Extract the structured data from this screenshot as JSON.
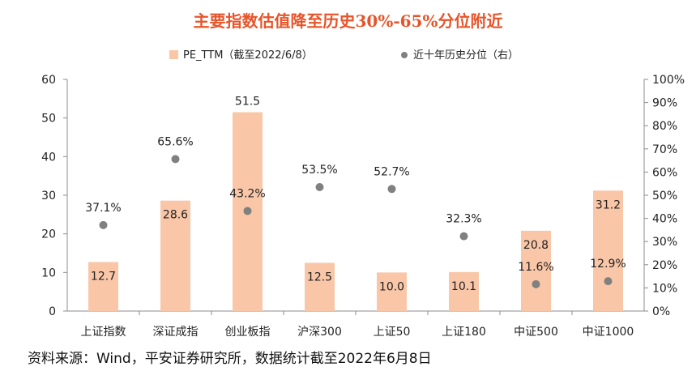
{
  "chart_data": {
    "type": "bar",
    "title": "主要指数估值降至历史30%-65%分位附近",
    "categories": [
      "上证指数",
      "深证成指",
      "创业板指",
      "沪深300",
      "上证50",
      "上证180",
      "中证500",
      "中证1000"
    ],
    "series": [
      {
        "name": "PE_TTM（截至2022/6/8）",
        "type": "bar",
        "axis": "left",
        "color": "#F9C7A8",
        "values": [
          12.7,
          28.6,
          51.5,
          12.5,
          10.0,
          10.1,
          20.8,
          31.2
        ],
        "labels": [
          "12.7",
          "28.6",
          "51.5",
          "12.5",
          "10.0",
          "10.1",
          "20.8",
          "31.2"
        ]
      },
      {
        "name": "近十年历史分位（右）",
        "type": "scatter",
        "axis": "right",
        "color": "#808080",
        "values": [
          37.1,
          65.6,
          43.2,
          53.5,
          52.7,
          32.3,
          11.6,
          12.9
        ],
        "labels": [
          "37.1%",
          "65.6%",
          "43.2%",
          "53.5%",
          "52.7%",
          "32.3%",
          "11.6%",
          "12.9%"
        ]
      }
    ],
    "y_left": {
      "ylim": [
        0,
        60
      ],
      "ticks": [
        0,
        10,
        20,
        30,
        40,
        50,
        60
      ],
      "tick_labels": [
        "0",
        "10",
        "20",
        "30",
        "40",
        "50",
        "60"
      ]
    },
    "y_right": {
      "ylim": [
        0,
        100
      ],
      "ticks": [
        0,
        10,
        20,
        30,
        40,
        50,
        60,
        70,
        80,
        90,
        100
      ],
      "tick_labels": [
        "0%",
        "10%",
        "20%",
        "30%",
        "40%",
        "50%",
        "60%",
        "70%",
        "80%",
        "90%",
        "100%"
      ]
    },
    "grid": false,
    "legend": "top-center"
  },
  "source_note": "资料来源：Wind，平安证券研究所，数据统计截至2022年6月8日"
}
